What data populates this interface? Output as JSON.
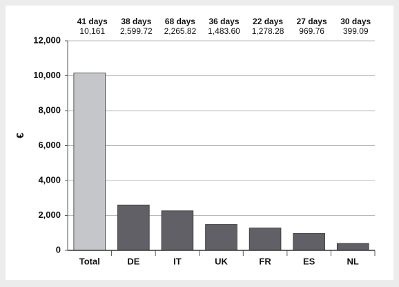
{
  "chart_data": {
    "type": "bar",
    "y_label": "€",
    "categories": [
      "Total",
      "DE",
      "IT",
      "UK",
      "FR",
      "ES",
      "NL"
    ],
    "values": [
      10161,
      2599.72,
      2265.82,
      1483.6,
      1278.28,
      969.76,
      399.09
    ],
    "value_labels": [
      "10,161",
      "2,599.72",
      "2,265.82",
      "1,483.60",
      "1,278.28",
      "969.76",
      "399.09"
    ],
    "annotations": [
      "41 days",
      "38 days",
      "68 days",
      "36 days",
      "22 days",
      "27 days",
      "30 days"
    ],
    "colors": [
      "#c5c6ca",
      "#606066",
      "#606066",
      "#606066",
      "#606066",
      "#606066",
      "#606066"
    ],
    "ylim": [
      0,
      12000
    ],
    "yticks": [
      0,
      {
        "value": 2000,
        "label": "2,000"
      },
      {
        "value": 4000,
        "label": "4,000"
      },
      {
        "value": 6000,
        "label": "6,000"
      },
      {
        "value": 8000,
        "label": "8,000"
      },
      {
        "value": 10000,
        "label": "10,000"
      },
      {
        "value": 12000,
        "label": "12,000"
      }
    ],
    "grid": true
  }
}
